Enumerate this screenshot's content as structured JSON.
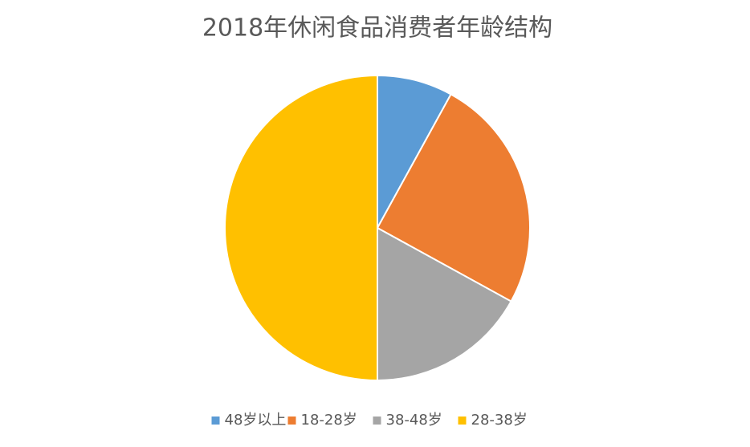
{
  "chart_data": {
    "type": "pie",
    "title": "2018年休闲食品消费者年龄结构",
    "categories": [
      "48岁以上",
      "18-28岁",
      "38-48岁",
      "28-38岁"
    ],
    "values": [
      8,
      25,
      17,
      50
    ],
    "colors": [
      "#5b9bd5",
      "#ed7d31",
      "#a5a5a5",
      "#ffc000"
    ],
    "legend": "bottom"
  }
}
